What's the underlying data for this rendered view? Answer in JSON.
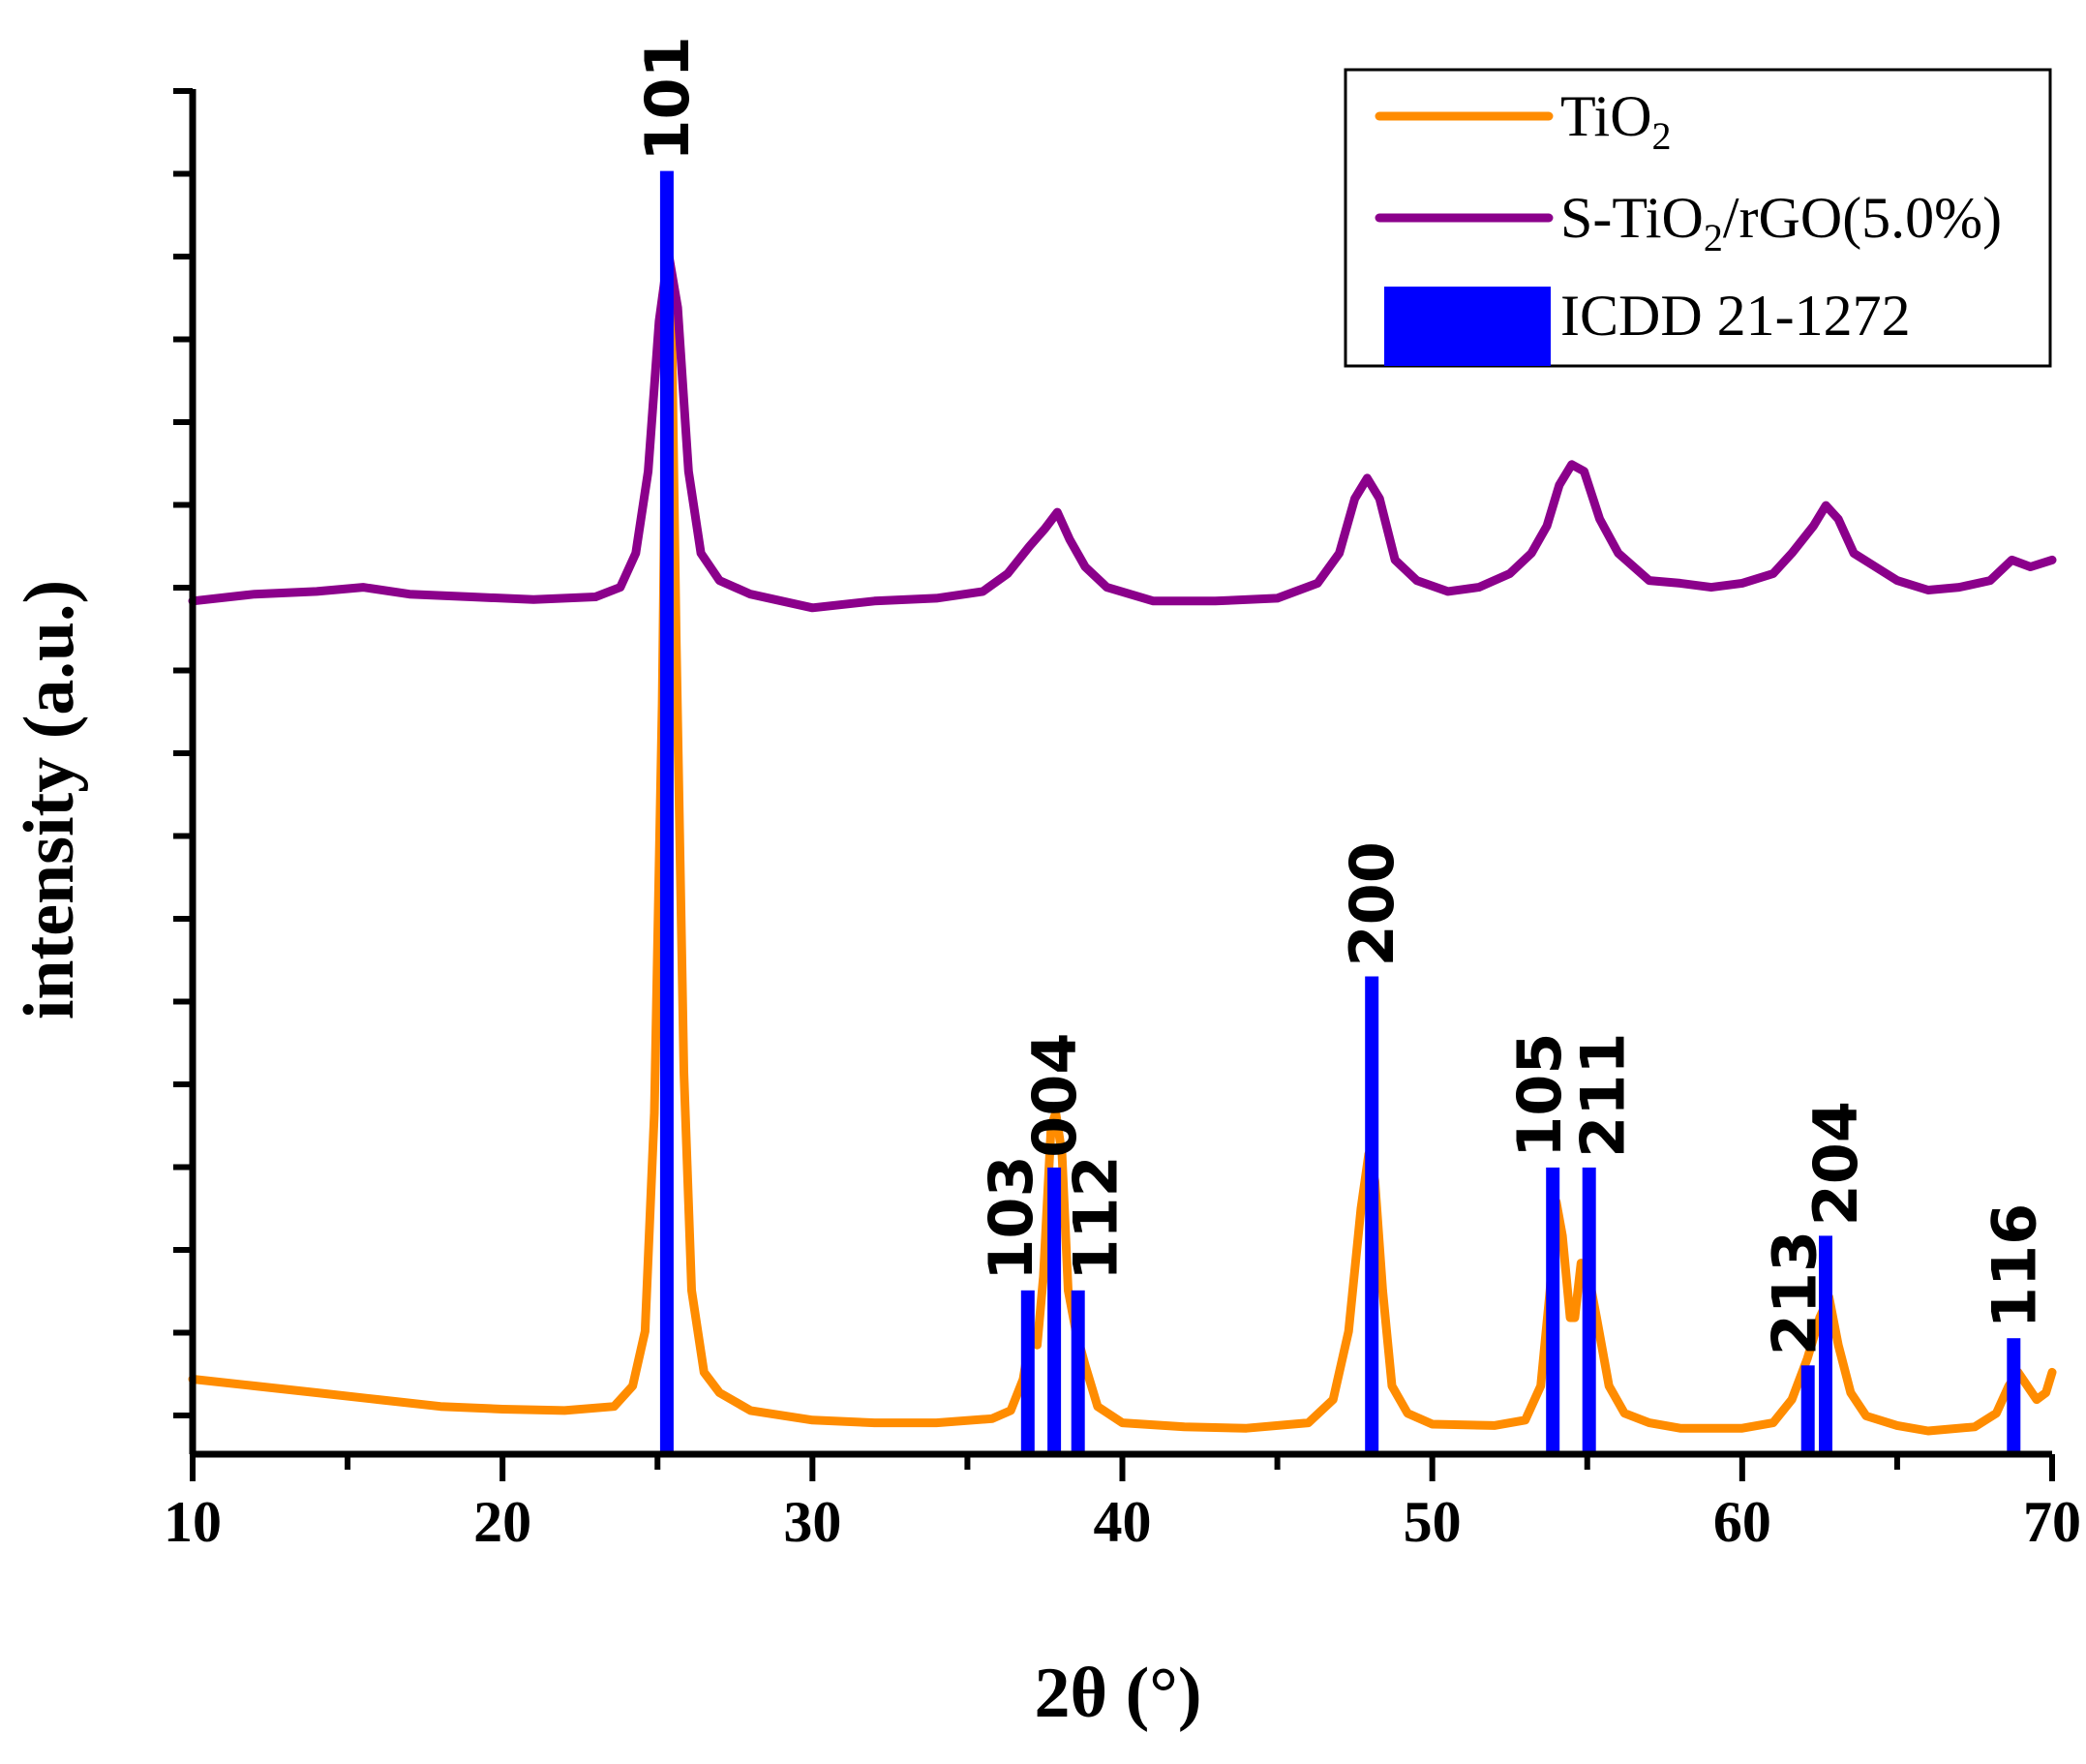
{
  "chart_data": {
    "type": "line",
    "title": "",
    "xlabel": "2θ (°)",
    "ylabel": "intensity (a.u.)",
    "xlim": [
      10,
      70
    ],
    "xticks": [
      10,
      20,
      30,
      40,
      50,
      60,
      70
    ],
    "ylim": [
      0,
      100
    ],
    "legend_position": "top-right",
    "series": [
      {
        "name": "TiO2",
        "name_parts": {
          "main": "TiO",
          "sub": "2",
          "tail": ""
        },
        "color": "#FF8C00",
        "points": [
          [
            10,
            5.5
          ],
          [
            12,
            5
          ],
          [
            14,
            4.5
          ],
          [
            16,
            4
          ],
          [
            18,
            3.5
          ],
          [
            20,
            3.3
          ],
          [
            22,
            3.2
          ],
          [
            23.6,
            3.5
          ],
          [
            24.2,
            5
          ],
          [
            24.6,
            9
          ],
          [
            24.9,
            25
          ],
          [
            25.15,
            55
          ],
          [
            25.3,
            84
          ],
          [
            25.45,
            84
          ],
          [
            25.6,
            60
          ],
          [
            25.85,
            28
          ],
          [
            26.1,
            12
          ],
          [
            26.5,
            6
          ],
          [
            27,
            4.5
          ],
          [
            28,
            3.2
          ],
          [
            30,
            2.5
          ],
          [
            32,
            2.3
          ],
          [
            34,
            2.3
          ],
          [
            35.8,
            2.6
          ],
          [
            36.4,
            3.2
          ],
          [
            36.8,
            5.5
          ],
          [
            37.05,
            9
          ],
          [
            37.25,
            8
          ],
          [
            37.45,
            13
          ],
          [
            37.7,
            24
          ],
          [
            37.85,
            25
          ],
          [
            38.05,
            22
          ],
          [
            38.25,
            12
          ],
          [
            38.5,
            9
          ],
          [
            38.8,
            6.5
          ],
          [
            39.2,
            3.5
          ],
          [
            40,
            2.3
          ],
          [
            42,
            2
          ],
          [
            44,
            1.9
          ],
          [
            46,
            2.3
          ],
          [
            46.8,
            4
          ],
          [
            47.3,
            9
          ],
          [
            47.7,
            18
          ],
          [
            47.95,
            22
          ],
          [
            48.15,
            20
          ],
          [
            48.4,
            12
          ],
          [
            48.7,
            5
          ],
          [
            49.2,
            3
          ],
          [
            50,
            2.2
          ],
          [
            52,
            2.1
          ],
          [
            53,
            2.5
          ],
          [
            53.5,
            5
          ],
          [
            53.8,
            12
          ],
          [
            54,
            18.5
          ],
          [
            54.2,
            16
          ],
          [
            54.45,
            10
          ],
          [
            54.6,
            10
          ],
          [
            54.8,
            14
          ],
          [
            55.05,
            13
          ],
          [
            55.3,
            10
          ],
          [
            55.7,
            5
          ],
          [
            56.2,
            3
          ],
          [
            57,
            2.3
          ],
          [
            58,
            1.9
          ],
          [
            60,
            1.9
          ],
          [
            61,
            2.3
          ],
          [
            61.6,
            4
          ],
          [
            62.1,
            7
          ],
          [
            62.5,
            10
          ],
          [
            62.8,
            11.5
          ],
          [
            63.1,
            8
          ],
          [
            63.5,
            4.5
          ],
          [
            64,
            2.8
          ],
          [
            65,
            2.1
          ],
          [
            66,
            1.7
          ],
          [
            67.5,
            2
          ],
          [
            68.2,
            3
          ],
          [
            68.6,
            5
          ],
          [
            68.9,
            6
          ],
          [
            69.2,
            5
          ],
          [
            69.5,
            4
          ],
          [
            69.8,
            4.5
          ],
          [
            70,
            6
          ]
        ]
      },
      {
        "name": "S-TiO2/rGO(5.0%)",
        "name_parts": {
          "main": "S-TiO",
          "sub": "2",
          "tail": "/rGO(5.0%)"
        },
        "color": "#8B008B",
        "points": [
          [
            10,
            62.5
          ],
          [
            12,
            63
          ],
          [
            14,
            63.2
          ],
          [
            15.5,
            63.5
          ],
          [
            17,
            63
          ],
          [
            19,
            62.8
          ],
          [
            21,
            62.6
          ],
          [
            23,
            62.8
          ],
          [
            23.8,
            63.5
          ],
          [
            24.3,
            66
          ],
          [
            24.7,
            72
          ],
          [
            25.05,
            83
          ],
          [
            25.35,
            88
          ],
          [
            25.65,
            84
          ],
          [
            26,
            72
          ],
          [
            26.4,
            66
          ],
          [
            27,
            64
          ],
          [
            28,
            63
          ],
          [
            30,
            62
          ],
          [
            32,
            62.5
          ],
          [
            34,
            62.7
          ],
          [
            35.5,
            63.2
          ],
          [
            36.3,
            64.5
          ],
          [
            37,
            66.5
          ],
          [
            37.5,
            67.8
          ],
          [
            37.9,
            69
          ],
          [
            38.3,
            67
          ],
          [
            38.8,
            65
          ],
          [
            39.5,
            63.5
          ],
          [
            41,
            62.5
          ],
          [
            43,
            62.5
          ],
          [
            45,
            62.7
          ],
          [
            46.3,
            63.8
          ],
          [
            47,
            66
          ],
          [
            47.5,
            70
          ],
          [
            47.9,
            71.5
          ],
          [
            48.3,
            70
          ],
          [
            48.8,
            65.5
          ],
          [
            49.5,
            64
          ],
          [
            50.5,
            63.2
          ],
          [
            51.5,
            63.5
          ],
          [
            52.5,
            64.5
          ],
          [
            53.2,
            66
          ],
          [
            53.7,
            68
          ],
          [
            54.1,
            71
          ],
          [
            54.5,
            72.5
          ],
          [
            54.9,
            72
          ],
          [
            55.4,
            68.5
          ],
          [
            56,
            66
          ],
          [
            57,
            64
          ],
          [
            58,
            63.8
          ],
          [
            59,
            63.5
          ],
          [
            60,
            63.8
          ],
          [
            61,
            64.5
          ],
          [
            61.6,
            66
          ],
          [
            62.3,
            68
          ],
          [
            62.7,
            69.5
          ],
          [
            63.1,
            68.5
          ],
          [
            63.6,
            66
          ],
          [
            64.3,
            65
          ],
          [
            65,
            64
          ],
          [
            66,
            63.3
          ],
          [
            67,
            63.5
          ],
          [
            68,
            64
          ],
          [
            68.7,
            65.5
          ],
          [
            69.3,
            65
          ],
          [
            70,
            65.5
          ]
        ]
      }
    ],
    "reference": {
      "name": "ICDD 21-1272",
      "color": "#0000FF",
      "peaks": [
        {
          "two_theta": 25.3,
          "height": 94,
          "hkl": "101"
        },
        {
          "two_theta": 36.95,
          "height": 12,
          "hkl": "103"
        },
        {
          "two_theta": 37.8,
          "height": 21,
          "hkl": "004"
        },
        {
          "two_theta": 38.57,
          "height": 12,
          "hkl": "112"
        },
        {
          "two_theta": 48.05,
          "height": 35,
          "hkl": "200"
        },
        {
          "two_theta": 53.89,
          "height": 21,
          "hkl": "105"
        },
        {
          "two_theta": 55.06,
          "height": 21,
          "hkl": "211"
        },
        {
          "two_theta": 62.12,
          "height": 6.5,
          "hkl": "213"
        },
        {
          "two_theta": 62.69,
          "height": 16,
          "hkl": "204"
        },
        {
          "two_theta": 68.76,
          "height": 8.5,
          "hkl": "116"
        }
      ]
    }
  }
}
